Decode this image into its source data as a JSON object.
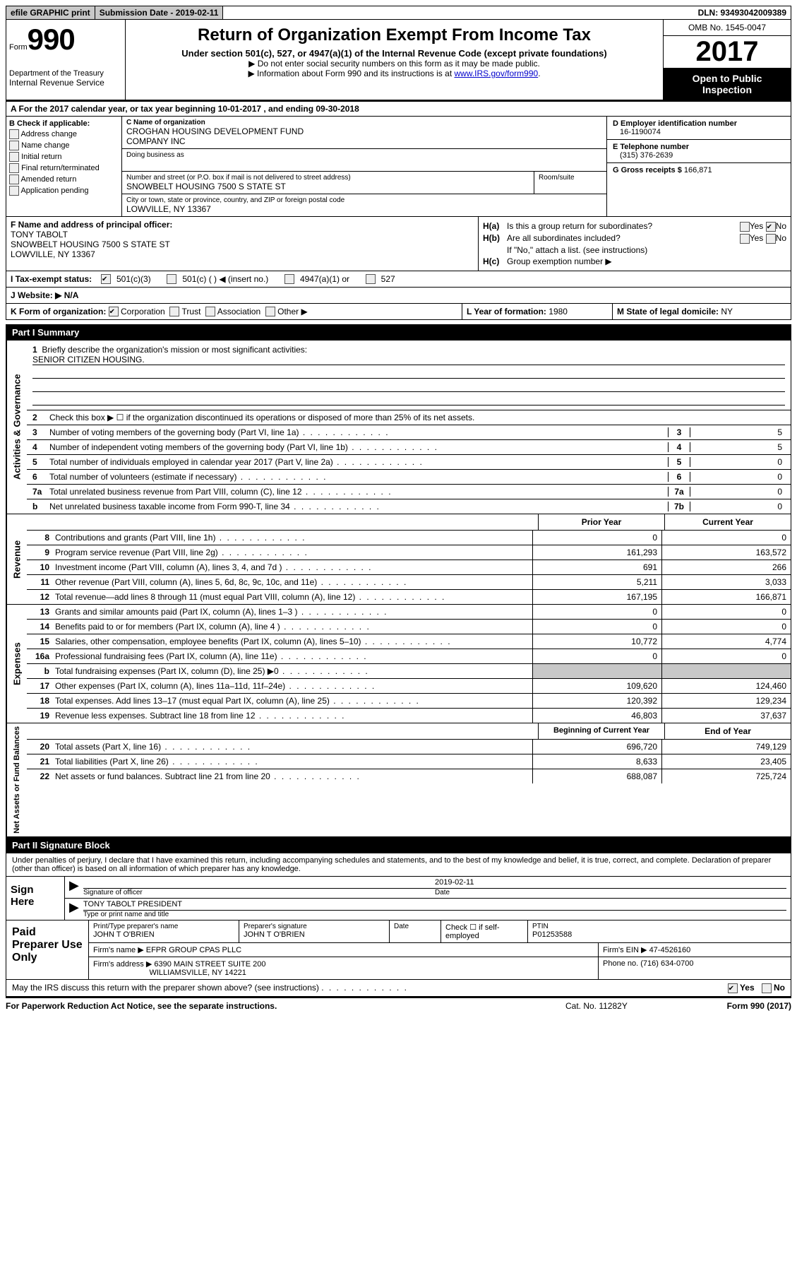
{
  "topbar": {
    "efile": "efile GRAPHIC print",
    "submission": "Submission Date - 2019-02-11",
    "dln": "DLN: 93493042009389"
  },
  "header": {
    "form_word": "Form",
    "form_num": "990",
    "dept1": "Department of the Treasury",
    "dept2": "Internal Revenue Service",
    "title": "Return of Organization Exempt From Income Tax",
    "subtitle": "Under section 501(c), 527, or 4947(a)(1) of the Internal Revenue Code (except private foundations)",
    "note1": "▶ Do not enter social security numbers on this form as it may be made public.",
    "note2_pre": "▶ Information about Form 990 and its instructions is at ",
    "note2_link": "www.IRS.gov/form990",
    "omb": "OMB No. 1545-0047",
    "year": "2017",
    "open1": "Open to Public",
    "open2": "Inspection"
  },
  "rowA": "A  For the 2017 calendar year, or tax year beginning 10-01-2017   , and ending 09-30-2018",
  "colB": {
    "hdr": "B Check if applicable:",
    "items": [
      "Address change",
      "Name change",
      "Initial return",
      "Final return/terminated",
      "Amended return",
      "Application pending"
    ]
  },
  "colC": {
    "name_lbl": "C Name of organization",
    "name1": "CROGHAN HOUSING DEVELOPMENT FUND",
    "name2": "COMPANY INC",
    "dba_lbl": "Doing business as",
    "addr_lbl": "Number and street (or P.O. box if mail is not delivered to street address)",
    "addr": "SNOWBELT HOUSING 7500 S STATE ST",
    "room_lbl": "Room/suite",
    "city_lbl": "City or town, state or province, country, and ZIP or foreign postal code",
    "city": "LOWVILLE, NY  13367"
  },
  "colD": {
    "ein_lbl": "D Employer identification number",
    "ein": "16-1190074",
    "phone_lbl": "E Telephone number",
    "phone": "(315) 376-2639",
    "gross_lbl": "G Gross receipts $",
    "gross": "166,871"
  },
  "rowF": {
    "lbl": "F Name and address of principal officer:",
    "l1": "TONY TABOLT",
    "l2": "SNOWBELT HOUSING 7500 S STATE ST",
    "l3": "LOWVILLE, NY  13367"
  },
  "rowH": {
    "ha_lbl": "H(a)",
    "ha_txt": "Is this a group return for subordinates?",
    "hb_lbl": "H(b)",
    "hb_txt": "Are all subordinates included?",
    "hb_note": "If \"No,\" attach a list. (see instructions)",
    "hc_lbl": "H(c)",
    "hc_txt": "Group exemption number ▶",
    "yes": "Yes",
    "no": "No"
  },
  "rowI": {
    "lbl": "I  Tax-exempt status:",
    "o1": "501(c)(3)",
    "o2": "501(c) (  ) ◀ (insert no.)",
    "o3": "4947(a)(1) or",
    "o4": "527"
  },
  "rowJ": "J  Website: ▶  N/A",
  "rowK": {
    "lbl": "K Form of organization:",
    "o1": "Corporation",
    "o2": "Trust",
    "o3": "Association",
    "o4": "Other ▶"
  },
  "rowL": {
    "lbl": "L Year of formation:",
    "val": "1980"
  },
  "rowM": {
    "lbl": "M State of legal domicile:",
    "val": "NY"
  },
  "part1_hdr": "Part I     Summary",
  "sides": {
    "gov": "Activities & Governance",
    "rev": "Revenue",
    "exp": "Expenses",
    "net": "Net Assets or Fund Balances"
  },
  "p1_gov": {
    "l1_num": "1",
    "l1": "Briefly describe the organization's mission or most significant activities:",
    "l1_val": "SENIOR CITIZEN HOUSING.",
    "l2_num": "2",
    "l2": "Check this box ▶ ☐  if the organization discontinued its operations or disposed of more than 25% of its net assets.",
    "rows": [
      {
        "n": "3",
        "d": "Number of voting members of the governing body (Part VI, line 1a)",
        "box": "3",
        "v": "5"
      },
      {
        "n": "4",
        "d": "Number of independent voting members of the governing body (Part VI, line 1b)",
        "box": "4",
        "v": "5"
      },
      {
        "n": "5",
        "d": "Total number of individuals employed in calendar year 2017 (Part V, line 2a)",
        "box": "5",
        "v": "0"
      },
      {
        "n": "6",
        "d": "Total number of volunteers (estimate if necessary)",
        "box": "6",
        "v": "0"
      },
      {
        "n": "7a",
        "d": "Total unrelated business revenue from Part VIII, column (C), line 12",
        "box": "7a",
        "v": "0"
      },
      {
        "n": "b",
        "d": "Net unrelated business taxable income from Form 990-T, line 34",
        "box": "7b",
        "v": "0"
      }
    ]
  },
  "col_hdrs": {
    "prior": "Prior Year",
    "current": "Current Year",
    "beg": "Beginning of Current Year",
    "end": "End of Year"
  },
  "rev": [
    {
      "n": "8",
      "d": "Contributions and grants (Part VIII, line 1h)",
      "p": "0",
      "c": "0"
    },
    {
      "n": "9",
      "d": "Program service revenue (Part VIII, line 2g)",
      "p": "161,293",
      "c": "163,572"
    },
    {
      "n": "10",
      "d": "Investment income (Part VIII, column (A), lines 3, 4, and 7d )",
      "p": "691",
      "c": "266"
    },
    {
      "n": "11",
      "d": "Other revenue (Part VIII, column (A), lines 5, 6d, 8c, 9c, 10c, and 11e)",
      "p": "5,211",
      "c": "3,033"
    },
    {
      "n": "12",
      "d": "Total revenue—add lines 8 through 11 (must equal Part VIII, column (A), line 12)",
      "p": "167,195",
      "c": "166,871"
    }
  ],
  "exp": [
    {
      "n": "13",
      "d": "Grants and similar amounts paid (Part IX, column (A), lines 1–3 )",
      "p": "0",
      "c": "0"
    },
    {
      "n": "14",
      "d": "Benefits paid to or for members (Part IX, column (A), line 4 )",
      "p": "0",
      "c": "0"
    },
    {
      "n": "15",
      "d": "Salaries, other compensation, employee benefits (Part IX, column (A), lines 5–10)",
      "p": "10,772",
      "c": "4,774"
    },
    {
      "n": "16a",
      "d": "Professional fundraising fees (Part IX, column (A), line 11e)",
      "p": "0",
      "c": "0"
    },
    {
      "n": "b",
      "d": "Total fundraising expenses (Part IX, column (D), line 25) ▶0",
      "p": "grey",
      "c": "grey"
    },
    {
      "n": "17",
      "d": "Other expenses (Part IX, column (A), lines 11a–11d, 11f–24e)",
      "p": "109,620",
      "c": "124,460"
    },
    {
      "n": "18",
      "d": "Total expenses. Add lines 13–17 (must equal Part IX, column (A), line 25)",
      "p": "120,392",
      "c": "129,234"
    },
    {
      "n": "19",
      "d": "Revenue less expenses. Subtract line 18 from line 12",
      "p": "46,803",
      "c": "37,637"
    }
  ],
  "net": [
    {
      "n": "20",
      "d": "Total assets (Part X, line 16)",
      "p": "696,720",
      "c": "749,129"
    },
    {
      "n": "21",
      "d": "Total liabilities (Part X, line 26)",
      "p": "8,633",
      "c": "23,405"
    },
    {
      "n": "22",
      "d": "Net assets or fund balances. Subtract line 21 from line 20",
      "p": "688,087",
      "c": "725,724"
    }
  ],
  "part2_hdr": "Part II    Signature Block",
  "sig": {
    "intro": "Under penalties of perjury, I declare that I have examined this return, including accompanying schedules and statements, and to the best of my knowledge and belief, it is true, correct, and complete. Declaration of preparer (other than officer) is based on all information of which preparer has any knowledge.",
    "sign_here": "Sign Here",
    "sig_lbl": "Signature of officer",
    "date_lbl": "Date",
    "date_val": "2019-02-11",
    "name_val": "TONY TABOLT PRESIDENT",
    "name_lbl": "Type or print name and title"
  },
  "prep": {
    "hdr": "Paid Preparer Use Only",
    "name_lbl": "Print/Type preparer's name",
    "name": "JOHN T O'BRIEN",
    "sig_lbl": "Preparer's signature",
    "sig": "JOHN T O'BRIEN",
    "date_lbl": "Date",
    "check_lbl": "Check ☐ if self-employed",
    "ptin_lbl": "PTIN",
    "ptin": "P01253588",
    "firm_lbl": "Firm's name   ▶",
    "firm": "EFPR GROUP CPAS PLLC",
    "ein_lbl": "Firm's EIN ▶",
    "ein": "47-4526160",
    "addr_lbl": "Firm's address ▶",
    "addr1": "6390 MAIN STREET SUITE 200",
    "addr2": "WILLIAMSVILLE, NY  14221",
    "phone_lbl": "Phone no.",
    "phone": "(716) 634-0700"
  },
  "discuss": {
    "txt": "May the IRS discuss this return with the preparer shown above? (see instructions)",
    "yes": "Yes",
    "no": "No"
  },
  "footer": {
    "f1": "For Paperwork Reduction Act Notice, see the separate instructions.",
    "f2": "Cat. No. 11282Y",
    "f3": "Form 990 (2017)"
  }
}
